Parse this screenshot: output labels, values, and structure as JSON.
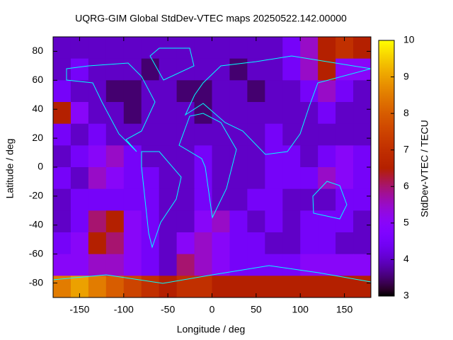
{
  "chart_data": {
    "type": "heatmap",
    "title": "UQRG-GIM Global StdDev-VTEC maps 20250522.142.00000",
    "x_label": "Longitude / deg",
    "y_label": "Latitude / deg",
    "colorbar_label": "StdDev-VTEC / TECU",
    "colormap": "gnuplot",
    "xlim": [
      -180,
      180
    ],
    "ylim": [
      -90,
      90
    ],
    "zlim": [
      3,
      10
    ],
    "xticks": [
      -150,
      -100,
      -50,
      0,
      50,
      100,
      150
    ],
    "yticks": [
      -80,
      -60,
      -40,
      -20,
      0,
      20,
      40,
      60,
      80
    ],
    "zticks": [
      3,
      4,
      5,
      6,
      7,
      8,
      9,
      10
    ],
    "x": [
      -170,
      -150,
      -130,
      -110,
      -90,
      -70,
      -50,
      -30,
      -10,
      10,
      30,
      50,
      70,
      90,
      110,
      130,
      150,
      170
    ],
    "y": [
      82.5,
      67.5,
      52.5,
      37.5,
      22.5,
      7.5,
      -7.5,
      -22.5,
      -37.5,
      -52.5,
      -67.5,
      -82.5
    ],
    "z": [
      [
        4,
        4,
        4,
        4,
        4,
        4,
        4,
        4,
        4,
        4,
        4,
        4,
        4,
        4.5,
        5.5,
        6.5,
        7,
        6.5
      ],
      [
        4,
        4.5,
        4,
        4,
        4,
        3.5,
        4,
        4,
        4,
        4,
        3.5,
        4,
        4,
        4.5,
        5.5,
        6.5,
        5,
        5
      ],
      [
        4.5,
        4,
        4,
        3.5,
        3.5,
        4,
        4,
        3.5,
        3.5,
        4,
        4,
        3.5,
        4,
        4,
        4.5,
        5.5,
        4.5,
        4
      ],
      [
        6.5,
        5,
        4,
        4,
        3.5,
        4,
        4,
        4,
        3.5,
        4,
        4,
        4,
        4,
        4,
        4,
        4.5,
        4,
        4
      ],
      [
        4.5,
        4,
        4.5,
        4,
        4,
        4,
        4,
        4,
        4,
        4,
        4,
        4,
        4.5,
        4,
        4,
        4,
        4,
        4
      ],
      [
        4,
        4.5,
        5,
        5.5,
        4.5,
        4,
        4,
        4,
        4.5,
        4,
        4,
        4,
        4.5,
        4.5,
        4,
        4.5,
        5,
        4.5
      ],
      [
        4.5,
        4,
        5.5,
        5,
        4.5,
        4.5,
        4,
        4,
        4.5,
        4,
        4,
        4,
        4.5,
        4.5,
        4.5,
        5.5,
        5,
        4.5
      ],
      [
        4,
        4.5,
        4.5,
        4.5,
        4.5,
        4.5,
        4,
        4,
        4.5,
        4,
        4,
        4.5,
        4.5,
        4,
        4,
        4,
        4.5,
        4.5
      ],
      [
        4,
        4.5,
        6,
        6.5,
        5,
        4.5,
        4,
        4,
        5,
        5.5,
        4.5,
        4,
        4.5,
        4,
        4.5,
        4.5,
        4.5,
        4
      ],
      [
        4.5,
        5,
        6.5,
        6,
        5,
        4.5,
        4,
        5,
        5.5,
        5,
        4.5,
        4.5,
        4,
        4,
        4.5,
        4.5,
        4,
        4
      ],
      [
        5,
        5,
        5.5,
        5.5,
        5,
        4.5,
        4,
        6,
        5.5,
        5,
        4.5,
        4.5,
        4.5,
        4.5,
        5,
        5,
        5,
        5
      ],
      [
        8.5,
        9,
        8.5,
        8,
        7.5,
        7,
        6.5,
        7,
        7,
        6.5,
        6.5,
        6.5,
        6.5,
        6.5,
        6.5,
        6.5,
        6.5,
        6.5
      ]
    ]
  }
}
